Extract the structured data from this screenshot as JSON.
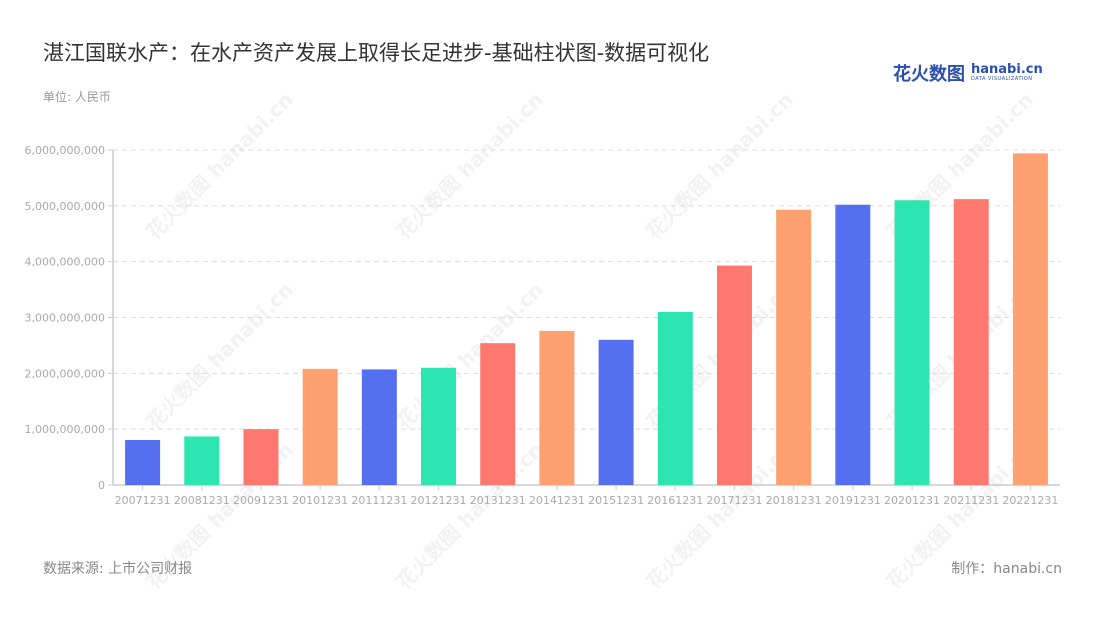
{
  "header": {
    "title": "湛江国联水产：在水产资产发展上取得长足进步-基础柱状图-数据可视化",
    "unit": "单位: 人民币"
  },
  "logo": {
    "cn": "花火数图",
    "en": "hanabi.cn",
    "sub": "DATA VISUALIZATION"
  },
  "footer": {
    "source": "数据来源: 上市公司财报",
    "credit": "制作：hanabi.cn"
  },
  "watermark": "花火数图 hanabi.cn",
  "colors": [
    "#5470f0",
    "#2de5b0",
    "#ff7870",
    "#ffa070"
  ],
  "chart_data": {
    "type": "bar",
    "title": "湛江国联水产：在水产资产发展上取得长足进步-基础柱状图-数据可视化",
    "xlabel": "",
    "ylabel": "单位: 人民币",
    "ylim": [
      0,
      6000000000
    ],
    "yticks": [
      0,
      1000000000,
      2000000000,
      3000000000,
      4000000000,
      5000000000,
      6000000000
    ],
    "ytick_labels": [
      "0",
      "1,000,000,000",
      "2,000,000,000",
      "3,000,000,000",
      "4,000,000,000",
      "5,000,000,000",
      "6,000,000,000"
    ],
    "grid": true,
    "legend": "none",
    "categories": [
      "20071231",
      "20081231",
      "20091231",
      "20101231",
      "20111231",
      "20121231",
      "20131231",
      "20141231",
      "20151231",
      "20161231",
      "20171231",
      "20181231",
      "20191231",
      "20201231",
      "20211231",
      "20221231"
    ],
    "values": [
      806000000,
      870000000,
      1000000000,
      2080000000,
      2070000000,
      2100000000,
      2540000000,
      2760000000,
      2600000000,
      3100000000,
      3930000000,
      4930000000,
      5020000000,
      5100000000,
      5120000000,
      5940000000
    ]
  }
}
